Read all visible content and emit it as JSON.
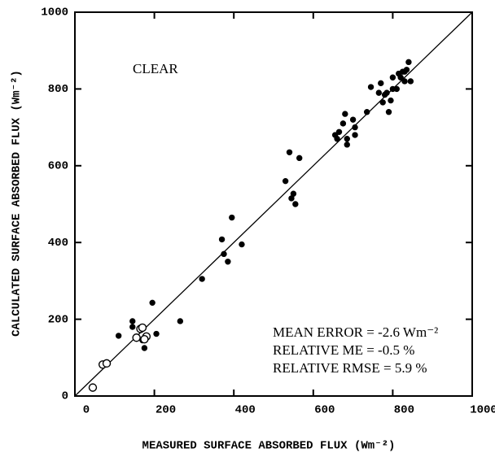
{
  "chart_data": {
    "type": "scatter",
    "xlabel": "MEASURED SURFACE ABSORBED FLUX  (Wm⁻²)",
    "ylabel": "CALCULATED SURFACE ABSORBED FLUX (Wm⁻²)",
    "annotations": [
      "CLEAR",
      "MEAN ERROR = -2.6 Wm⁻²",
      "RELATIVE ME = -0.5 %",
      "RELATIVE RMSE = 5.9 %"
    ],
    "xlim": [
      0,
      1000
    ],
    "ylim": [
      0,
      1000
    ],
    "xticks": [
      0,
      200,
      400,
      600,
      800,
      1000
    ],
    "yticks": [
      0,
      200,
      400,
      600,
      800,
      1000
    ],
    "series": [
      {
        "color": "#000000",
        "marker": "filled",
        "x": [
          110,
          145,
          145,
          170,
          175,
          195,
          205,
          265,
          320,
          370,
          375,
          385,
          395,
          420,
          530,
          540,
          545,
          550,
          555,
          565,
          655,
          660,
          665,
          675,
          680,
          685,
          685,
          700,
          705,
          705,
          735,
          745,
          765,
          770,
          775,
          780,
          785,
          790,
          795,
          800,
          800,
          810,
          815,
          820,
          825,
          830,
          835,
          840,
          845,
          830
        ],
        "values": [
          157,
          195,
          180,
          145,
          125,
          243,
          162,
          195,
          305,
          408,
          370,
          350,
          465,
          395,
          560,
          635,
          515,
          527,
          500,
          620,
          680,
          670,
          688,
          710,
          735,
          655,
          670,
          720,
          700,
          680,
          740,
          805,
          790,
          815,
          765,
          785,
          790,
          740,
          770,
          800,
          830,
          800,
          840,
          830,
          845,
          845,
          850,
          870,
          820,
          820
        ]
      },
      {
        "color": "#000000",
        "marker": "open",
        "x": [
          45,
          70,
          80,
          155,
          165,
          170,
          180,
          175
        ],
        "values": [
          22,
          82,
          85,
          152,
          175,
          178,
          155,
          148
        ]
      }
    ]
  }
}
